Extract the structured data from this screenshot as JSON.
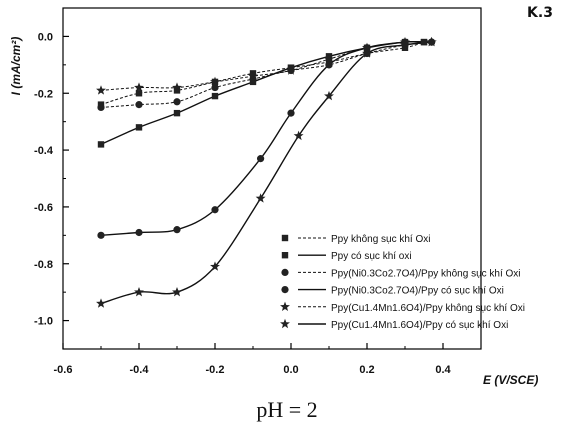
{
  "chart_data": {
    "type": "line",
    "title": "",
    "xlabel": "E (V/SCE)",
    "ylabel": "I (mA/cm²)",
    "caption": "pH = 2",
    "corner_mark": "K.3",
    "xlim": [
      -0.6,
      0.5
    ],
    "ylim": [
      -1.1,
      0.1
    ],
    "xticks": [
      -0.6,
      -0.4,
      -0.2,
      0.0,
      0.2,
      0.4
    ],
    "xtick_labels": [
      "-0.6",
      "-0.4",
      "-0.2",
      "0.0",
      "0.2",
      "0.4"
    ],
    "yticks": [
      0.0,
      -0.2,
      -0.4,
      -0.6,
      -0.8,
      -1.0
    ],
    "ytick_labels": [
      "0.0",
      "-0.2",
      "-0.4",
      "-0.6",
      "-0.8",
      "-1.0"
    ],
    "grid": false,
    "legend_position": "lower-right",
    "series": [
      {
        "name": "Ppy không sục khí Oxi",
        "marker": "square",
        "line_style": "dashed",
        "x": [
          -0.5,
          -0.4,
          -0.3,
          -0.2,
          -0.1,
          0.0,
          0.1,
          0.2,
          0.3,
          0.35
        ],
        "y": [
          -0.24,
          -0.2,
          -0.19,
          -0.16,
          -0.13,
          -0.11,
          -0.09,
          -0.06,
          -0.04,
          -0.02
        ]
      },
      {
        "name": "Ppy có sục khí oxi",
        "marker": "square",
        "line_style": "solid",
        "x": [
          -0.5,
          -0.4,
          -0.3,
          -0.2,
          -0.1,
          0.0,
          0.1,
          0.2,
          0.3,
          0.35
        ],
        "y": [
          -0.38,
          -0.32,
          -0.27,
          -0.21,
          -0.16,
          -0.11,
          -0.07,
          -0.04,
          -0.02,
          -0.02
        ]
      },
      {
        "name": "Ppy(Ni0.3Co2.7O4)/Ppy không sục khí Oxi",
        "marker": "circle",
        "line_style": "dashed",
        "x": [
          -0.5,
          -0.4,
          -0.3,
          -0.2,
          -0.1,
          0.0,
          0.1,
          0.2,
          0.3,
          0.37
        ],
        "y": [
          -0.25,
          -0.24,
          -0.23,
          -0.18,
          -0.15,
          -0.12,
          -0.1,
          -0.06,
          -0.03,
          -0.02
        ]
      },
      {
        "name": "Ppy(Ni0.3Co2.7O4)/Ppy có sục khí Oxi",
        "marker": "circle",
        "line_style": "solid",
        "x": [
          -0.5,
          -0.4,
          -0.3,
          -0.2,
          -0.08,
          0.0,
          0.1,
          0.2,
          0.3,
          0.37
        ],
        "y": [
          -0.7,
          -0.69,
          -0.68,
          -0.61,
          -0.43,
          -0.27,
          -0.1,
          -0.04,
          -0.02,
          -0.02
        ]
      },
      {
        "name": "Ppy(Cu1.4Mn1.6O4)/Ppy không sục khí Oxi",
        "marker": "star",
        "line_style": "dashed",
        "x": [
          -0.5,
          -0.4,
          -0.3,
          -0.2,
          -0.1,
          0.0,
          0.1,
          0.2,
          0.3,
          0.37
        ],
        "y": [
          -0.19,
          -0.18,
          -0.18,
          -0.16,
          -0.14,
          -0.12,
          -0.08,
          -0.04,
          -0.02,
          -0.02
        ]
      },
      {
        "name": "Ppy(Cu1.4Mn1.6O4)/Ppy có sục khí Oxi",
        "marker": "star",
        "line_style": "solid",
        "x": [
          -0.5,
          -0.4,
          -0.3,
          -0.2,
          -0.08,
          0.02,
          0.1,
          0.2,
          0.3,
          0.37
        ],
        "y": [
          -0.94,
          -0.9,
          -0.9,
          -0.81,
          -0.57,
          -0.35,
          -0.21,
          -0.06,
          -0.03,
          -0.02
        ]
      }
    ]
  }
}
